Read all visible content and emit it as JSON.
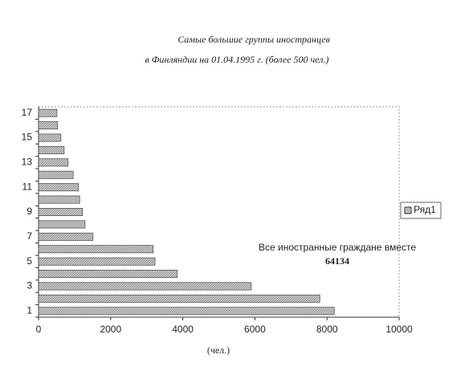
{
  "chart_data": {
    "type": "barh",
    "title": [
      "Самые большие группы иностранцев",
      "в Финляндии на 01.04.1995 г. (более 500 чел.)"
    ],
    "categories": [
      "1",
      null,
      "3",
      null,
      "5",
      null,
      "7",
      null,
      "9",
      null,
      "11",
      null,
      "13",
      null,
      "15",
      null,
      "17"
    ],
    "series": [
      {
        "name": "Ряд1",
        "color": "#b8b8b8",
        "values": [
          8200,
          7800,
          5900,
          3850,
          3230,
          3180,
          1510,
          1290,
          1220,
          1140,
          1110,
          960,
          820,
          710,
          620,
          530,
          510
        ]
      }
    ],
    "xlim": [
      0,
      10000
    ],
    "xticks": [
      0,
      2000,
      4000,
      6000,
      8000,
      10000
    ],
    "xlabel": "(чел.)",
    "annotation": [
      "Все иностранные граждане вместе",
      "64134"
    ],
    "grid": false,
    "legend": "right"
  }
}
